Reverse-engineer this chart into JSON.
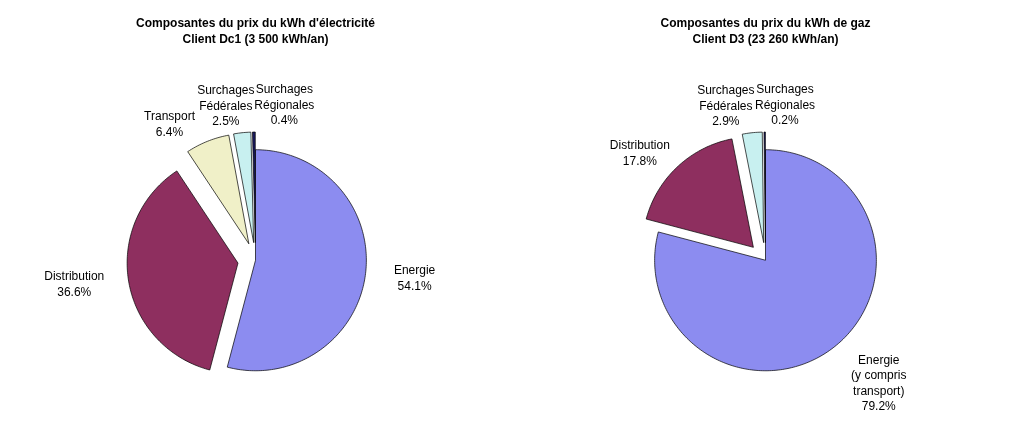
{
  "chart_data": [
    {
      "type": "pie",
      "title": "Composantes du prix du kWh d'électricité\nClient Dc1 (3 500 kWh/an)",
      "categories": [
        "Energie",
        "Distribution",
        "Transport",
        "Surchages\nFédérales",
        "Surchages\nRégionales"
      ],
      "values": [
        54.1,
        36.6,
        6.4,
        2.5,
        0.4
      ],
      "value_labels": [
        "54.1%",
        "36.6%",
        "6.4%",
        "2.5%",
        "0.4%"
      ],
      "colors": [
        "#8c8cf0",
        "#8e2f5f",
        "#f0f0c8",
        "#c8f0f0",
        "#1a1a60"
      ],
      "data_labels": true,
      "legend": false
    },
    {
      "type": "pie",
      "title": "Composantes du prix du kWh de gaz\nClient D3 (23 260 kWh/an)",
      "categories": [
        "Energie\n(y compris\ntransport)",
        "Distribution",
        "Surchages\nFédérales",
        "Surchages\nRégionales"
      ],
      "values": [
        79.2,
        17.8,
        2.9,
        0.2
      ],
      "value_labels": [
        "79.2%",
        "17.8%",
        "2.9%",
        "0.2%"
      ],
      "colors": [
        "#8c8cf0",
        "#8e2f5f",
        "#c8f0f0",
        "#1a1a60"
      ],
      "data_labels": true,
      "legend": false
    }
  ]
}
